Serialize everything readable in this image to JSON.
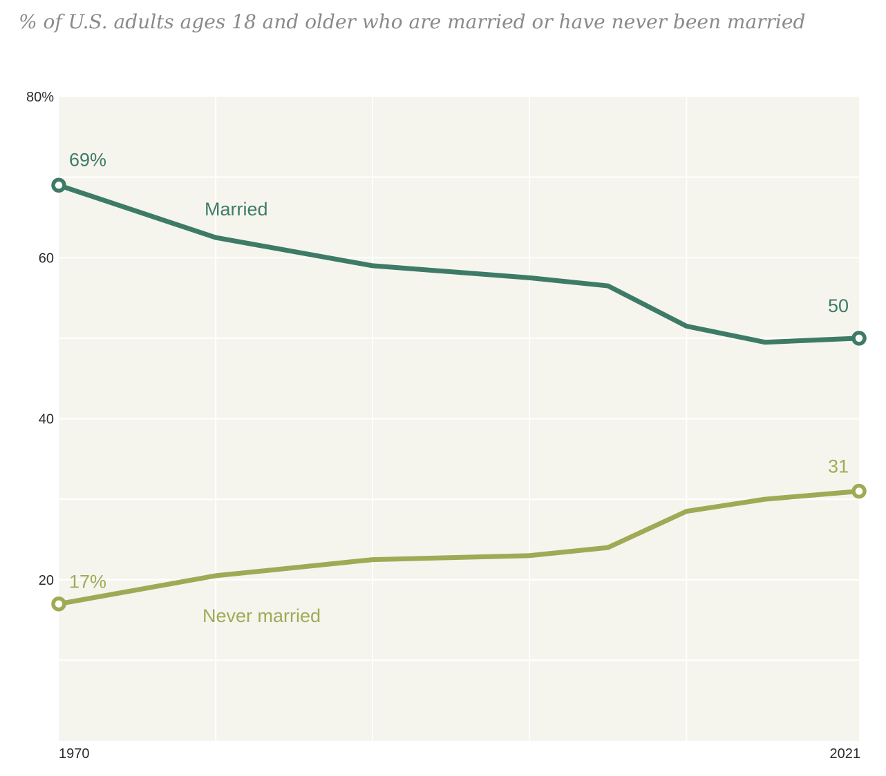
{
  "title": "% of U.S. adults ages 18 and older who are married or have never been married",
  "colors": {
    "married_line": "#3e7b67",
    "never_married_line": "#a0aa55",
    "plot_background": "#f5f5ee",
    "gridline": "#ffffff",
    "axis_text": "#2b2b2b",
    "title_text": "#8a8a8a",
    "page_background": "#ffffff",
    "endpoint_fill": "#fdfdfb"
  },
  "chart_data": {
    "type": "line",
    "title": "% of U.S. adults ages 18 and older who are married or have never been married",
    "x": [
      1970,
      1980,
      1990,
      2000,
      2005,
      2010,
      2015,
      2021
    ],
    "series": [
      {
        "name": "Married",
        "values": [
          69,
          62.5,
          59,
          57.5,
          56.5,
          51.5,
          49.5,
          50
        ],
        "color": "#3e7b67",
        "first_point_label": "69%",
        "last_point_label": "50"
      },
      {
        "name": "Never married",
        "values": [
          17,
          20.5,
          22.5,
          23,
          24,
          28.5,
          30,
          31
        ],
        "color": "#a0aa55",
        "first_point_label": "17%",
        "last_point_label": "31"
      }
    ],
    "xlim": [
      1970,
      2021
    ],
    "ylim": [
      0,
      80
    ],
    "x_axis_ticks": [
      {
        "value": 1970,
        "label": "1970"
      },
      {
        "value": 2021,
        "label": "2021"
      }
    ],
    "y_axis_ticks": [
      {
        "value": 80,
        "label": "80%"
      },
      {
        "value": 60,
        "label": "60"
      },
      {
        "value": 40,
        "label": "40"
      },
      {
        "value": 20,
        "label": "20"
      }
    ],
    "x_gridlines": [
      1980,
      1990,
      2000,
      2010
    ],
    "y_gridlines": [
      10,
      20,
      30,
      40,
      50,
      60,
      70
    ],
    "grid": true,
    "legend": "inline series labels on lines",
    "markers": "open circles at first and last data points"
  }
}
